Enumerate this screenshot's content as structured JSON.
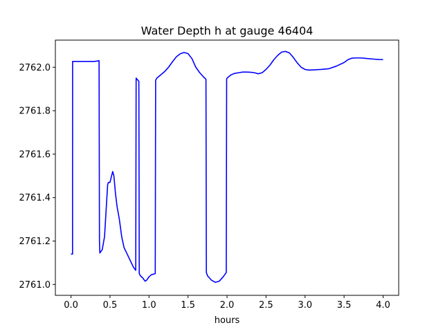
{
  "chart_data": {
    "type": "line",
    "title": "Water Depth h at gauge 46404",
    "xlabel": "hours",
    "ylabel": "",
    "xlim": [
      -0.2,
      4.2
    ],
    "ylim": [
      2760.95,
      2762.125
    ],
    "xticks": [
      0.0,
      0.5,
      1.0,
      1.5,
      2.0,
      2.5,
      3.0,
      3.5,
      4.0
    ],
    "xtick_labels": [
      "0.0",
      "0.5",
      "1.0",
      "1.5",
      "2.0",
      "2.5",
      "3.0",
      "3.5",
      "4.0"
    ],
    "yticks": [
      2761.0,
      2761.2,
      2761.4,
      2761.6,
      2761.8,
      2762.0
    ],
    "ytick_labels": [
      "2761.0",
      "2761.2",
      "2761.4",
      "2761.6",
      "2761.8",
      "2762.0"
    ],
    "grid": false,
    "series": [
      {
        "color": "#0000ff",
        "x": [
          0.0,
          0.02,
          0.021,
          0.1,
          0.2,
          0.3,
          0.36,
          0.365,
          0.37,
          0.4,
          0.43,
          0.45,
          0.47,
          0.48,
          0.5,
          0.52,
          0.535,
          0.55,
          0.57,
          0.59,
          0.62,
          0.65,
          0.68,
          0.72,
          0.76,
          0.8,
          0.83,
          0.835,
          0.87,
          0.875,
          0.89,
          0.92,
          0.95,
          0.97,
          1.0,
          1.03,
          1.08,
          1.085,
          1.1,
          1.15,
          1.2,
          1.25,
          1.3,
          1.35,
          1.4,
          1.45,
          1.5,
          1.55,
          1.6,
          1.65,
          1.7,
          1.73,
          1.735,
          1.75,
          1.8,
          1.85,
          1.9,
          1.95,
          1.99,
          1.995,
          2.0,
          2.05,
          2.1,
          2.15,
          2.2,
          2.25,
          2.3,
          2.35,
          2.4,
          2.45,
          2.5,
          2.55,
          2.6,
          2.65,
          2.7,
          2.75,
          2.8,
          2.85,
          2.9,
          2.95,
          3.0,
          3.05,
          3.1,
          3.2,
          3.3,
          3.4,
          3.5,
          3.55,
          3.6,
          3.65,
          3.7,
          3.75,
          3.8,
          3.9,
          4.0
        ],
        "y": [
          2761.14,
          2761.14,
          2762.027,
          2762.027,
          2762.027,
          2762.027,
          2762.03,
          2761.2,
          2761.145,
          2761.16,
          2761.22,
          2761.34,
          2761.46,
          2761.47,
          2761.47,
          2761.5,
          2761.52,
          2761.5,
          2761.42,
          2761.36,
          2761.3,
          2761.22,
          2761.17,
          2761.14,
          2761.11,
          2761.08,
          2761.065,
          2761.95,
          2761.935,
          2761.05,
          2761.04,
          2761.03,
          2761.015,
          2761.02,
          2761.035,
          2761.045,
          2761.05,
          2761.94,
          2761.95,
          2761.965,
          2761.98,
          2762.0,
          2762.025,
          2762.048,
          2762.062,
          2762.068,
          2762.063,
          2762.04,
          2762.0,
          2761.975,
          2761.955,
          2761.945,
          2761.055,
          2761.04,
          2761.02,
          2761.01,
          2761.015,
          2761.035,
          2761.055,
          2761.945,
          2761.95,
          2761.965,
          2761.972,
          2761.975,
          2761.978,
          2761.978,
          2761.977,
          2761.975,
          2761.97,
          2761.975,
          2761.99,
          2762.01,
          2762.035,
          2762.055,
          2762.07,
          2762.073,
          2762.066,
          2762.045,
          2762.02,
          2762.0,
          2761.99,
          2761.987,
          2761.988,
          2761.99,
          2761.993,
          2762.005,
          2762.022,
          2762.035,
          2762.042,
          2762.043,
          2762.043,
          2762.042,
          2762.04,
          2762.037,
          2762.035
        ]
      }
    ]
  }
}
